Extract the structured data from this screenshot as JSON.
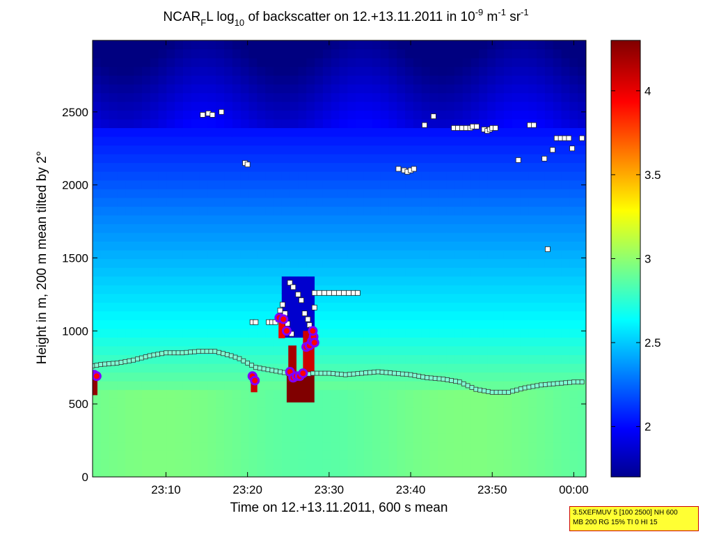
{
  "chart_data": {
    "type": "heatmap",
    "title_parts": {
      "a": "NCAR",
      "a_sub": "F",
      "b": "L log",
      "b_sub": "10",
      "c": " of backscatter on 12.+13.11.2011 in 10",
      "c_sup": "-9",
      "d": " m",
      "d_sup": "-1",
      "e": " sr",
      "e_sup": "-1"
    },
    "xlabel": "Time on 12.+13.11.2011, 600 s mean",
    "ylabel": "Height in m, 200 m mean tilted by 2°",
    "x_unit": "minutes after 23:00",
    "xlim": [
      1.0,
      61.5
    ],
    "ylim": [
      0,
      2990
    ],
    "x_ticks": [
      {
        "value": 10,
        "label": "23:10"
      },
      {
        "value": 20,
        "label": "23:20"
      },
      {
        "value": 30,
        "label": "23:30"
      },
      {
        "value": 40,
        "label": "23:40"
      },
      {
        "value": 50,
        "label": "23:50"
      },
      {
        "value": 60,
        "label": "00:00"
      }
    ],
    "y_ticks": [
      {
        "value": 0,
        "label": "0"
      },
      {
        "value": 500,
        "label": "500"
      },
      {
        "value": 1000,
        "label": "1000"
      },
      {
        "value": 1500,
        "label": "1500"
      },
      {
        "value": 2000,
        "label": "2000"
      },
      {
        "value": 2500,
        "label": "2500"
      }
    ],
    "colorbar": {
      "range": [
        1.7,
        4.3
      ],
      "colormap": "jet",
      "ticks": [
        {
          "value": 2,
          "label": "2"
        },
        {
          "value": 2.5,
          "label": "2.5"
        },
        {
          "value": 3,
          "label": "3"
        },
        {
          "value": 3.5,
          "label": "3.5"
        },
        {
          "value": 4,
          "label": "4"
        }
      ]
    },
    "boundary_layer_height": [
      [
        1,
        760
      ],
      [
        2,
        770
      ],
      [
        4,
        780
      ],
      [
        6,
        800
      ],
      [
        8,
        830
      ],
      [
        10,
        850
      ],
      [
        12,
        850
      ],
      [
        14,
        860
      ],
      [
        16,
        860
      ],
      [
        18,
        830
      ],
      [
        19,
        810
      ],
      [
        20,
        780
      ],
      [
        21,
        750
      ],
      [
        22,
        740
      ],
      [
        23,
        730
      ],
      [
        24,
        720
      ],
      [
        25,
        710
      ],
      [
        26,
        700
      ],
      [
        27,
        700
      ],
      [
        28,
        710
      ],
      [
        30,
        710
      ],
      [
        32,
        700
      ],
      [
        34,
        710
      ],
      [
        36,
        720
      ],
      [
        38,
        710
      ],
      [
        40,
        700
      ],
      [
        42,
        680
      ],
      [
        44,
        670
      ],
      [
        46,
        650
      ],
      [
        48,
        600
      ],
      [
        50,
        580
      ],
      [
        52,
        580
      ],
      [
        54,
        610
      ],
      [
        56,
        630
      ],
      [
        58,
        640
      ],
      [
        60,
        650
      ],
      [
        61.5,
        650
      ]
    ],
    "cloud_base_points": [
      [
        14.5,
        2480
      ],
      [
        15.2,
        2490
      ],
      [
        15.7,
        2480
      ],
      [
        16.8,
        2500
      ],
      [
        19.7,
        2150
      ],
      [
        20.0,
        2140
      ],
      [
        20.6,
        1060
      ],
      [
        21.0,
        1060
      ],
      [
        22.6,
        1060
      ],
      [
        23.0,
        1060
      ],
      [
        23.4,
        1060
      ],
      [
        23.8,
        1080
      ],
      [
        24.0,
        1140
      ],
      [
        24.3,
        1180
      ],
      [
        24.6,
        1120
      ],
      [
        24.9,
        1050
      ],
      [
        25.4,
        980
      ],
      [
        25.2,
        1330
      ],
      [
        25.6,
        1300
      ],
      [
        26.2,
        1250
      ],
      [
        26.6,
        1210
      ],
      [
        27.0,
        1120
      ],
      [
        27.4,
        1080
      ],
      [
        27.6,
        1040
      ],
      [
        27.8,
        1010
      ],
      [
        28.2,
        1160
      ],
      [
        28.2,
        1260
      ],
      [
        28.8,
        1260
      ],
      [
        29.4,
        1260
      ],
      [
        30.0,
        1260
      ],
      [
        30.6,
        1260
      ],
      [
        31.2,
        1260
      ],
      [
        31.8,
        1260
      ],
      [
        32.4,
        1260
      ],
      [
        33.0,
        1260
      ],
      [
        33.5,
        1260
      ],
      [
        38.5,
        2110
      ],
      [
        39.2,
        2100
      ],
      [
        39.6,
        2090
      ],
      [
        40.0,
        2100
      ],
      [
        40.4,
        2110
      ],
      [
        41.7,
        2410
      ],
      [
        42.8,
        2470
      ],
      [
        45.3,
        2390
      ],
      [
        45.8,
        2390
      ],
      [
        46.3,
        2390
      ],
      [
        46.8,
        2390
      ],
      [
        47.3,
        2390
      ],
      [
        47.6,
        2400
      ],
      [
        48.1,
        2400
      ],
      [
        49.0,
        2380
      ],
      [
        49.4,
        2370
      ],
      [
        49.7,
        2380
      ],
      [
        50.0,
        2390
      ],
      [
        50.4,
        2390
      ],
      [
        53.2,
        2170
      ],
      [
        54.6,
        2410
      ],
      [
        55.1,
        2410
      ],
      [
        56.4,
        2180
      ],
      [
        56.8,
        1560
      ],
      [
        57.4,
        2240
      ],
      [
        57.9,
        2320
      ],
      [
        58.4,
        2320
      ],
      [
        58.9,
        2320
      ],
      [
        59.4,
        2320
      ],
      [
        59.8,
        2250
      ],
      [
        61.0,
        2320
      ]
    ],
    "cloud_top_points": [
      [
        1.2,
        700
      ],
      [
        1.5,
        690
      ],
      [
        20.6,
        690
      ],
      [
        20.9,
        660
      ],
      [
        23.9,
        1090
      ],
      [
        24.4,
        1080
      ],
      [
        24.8,
        1000
      ],
      [
        25.2,
        720
      ],
      [
        25.6,
        680
      ],
      [
        26.0,
        690
      ],
      [
        26.4,
        690
      ],
      [
        26.8,
        710
      ],
      [
        27.2,
        890
      ],
      [
        27.6,
        900
      ],
      [
        27.9,
        930
      ],
      [
        28.1,
        960
      ],
      [
        28.0,
        1000
      ],
      [
        28.2,
        920
      ]
    ]
  },
  "info_box": {
    "line1": "3.5XEFMUV 5 [100 2500] NH 600",
    "line2": "MB 200 RG 15% TI 0 HI 15"
  },
  "colors": {
    "boundary_marker_fill": "#7fffd4",
    "cloud_point_fill": "#ffffff",
    "cloud_top_outer": "#8000ff",
    "cloud_top_inner": "#ff0000",
    "info_box_bg": "#ffff33",
    "info_box_border": "#cc0000"
  }
}
